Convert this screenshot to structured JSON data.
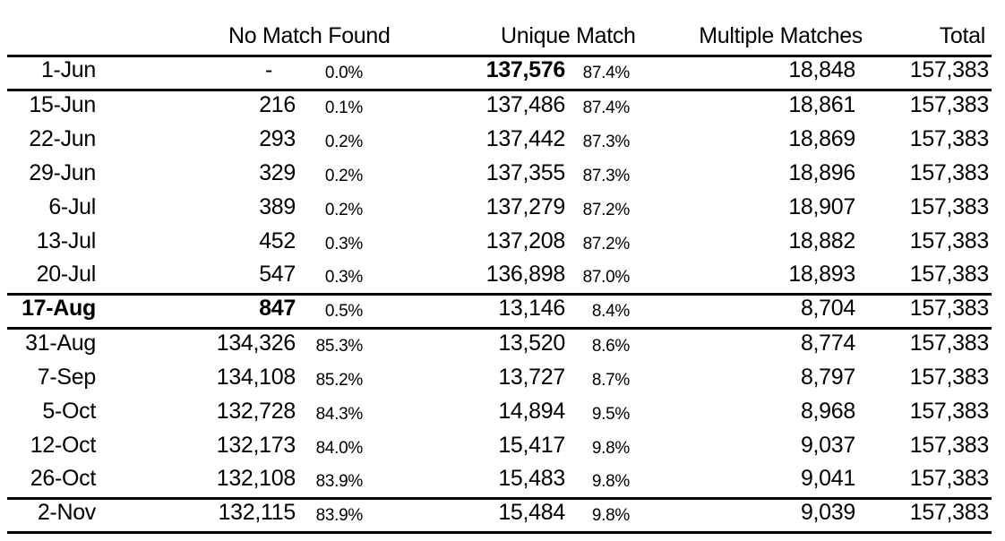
{
  "colors": {
    "text": "#000000",
    "background": "#ffffff",
    "rule": "#000000"
  },
  "chart_data": {
    "type": "table",
    "title": "",
    "column_groups": [
      {
        "label": ""
      },
      {
        "label": "No Match Found"
      },
      {
        "label": "Unique Match"
      },
      {
        "label": "Multiple Matches"
      },
      {
        "label": "Total"
      }
    ],
    "rows": [
      {
        "date": "1-Jun",
        "no_match": "-",
        "no_match_pct": "0.0%",
        "unique_match": "137,576",
        "unique_match_pct": "87.4%",
        "multiple_matches": "18,848",
        "total": "157,383",
        "bold": [
          "unique_match"
        ],
        "rule_below": true
      },
      {
        "date": "15-Jun",
        "no_match": "216",
        "no_match_pct": "0.1%",
        "unique_match": "137,486",
        "unique_match_pct": "87.4%",
        "multiple_matches": "18,861",
        "total": "157,383",
        "bold": [],
        "rule_below": false
      },
      {
        "date": "22-Jun",
        "no_match": "293",
        "no_match_pct": "0.2%",
        "unique_match": "137,442",
        "unique_match_pct": "87.3%",
        "multiple_matches": "18,869",
        "total": "157,383",
        "bold": [],
        "rule_below": false
      },
      {
        "date": "29-Jun",
        "no_match": "329",
        "no_match_pct": "0.2%",
        "unique_match": "137,355",
        "unique_match_pct": "87.3%",
        "multiple_matches": "18,896",
        "total": "157,383",
        "bold": [],
        "rule_below": false
      },
      {
        "date": "6-Jul",
        "no_match": "389",
        "no_match_pct": "0.2%",
        "unique_match": "137,279",
        "unique_match_pct": "87.2%",
        "multiple_matches": "18,907",
        "total": "157,383",
        "bold": [],
        "rule_below": false
      },
      {
        "date": "13-Jul",
        "no_match": "452",
        "no_match_pct": "0.3%",
        "unique_match": "137,208",
        "unique_match_pct": "87.2%",
        "multiple_matches": "18,882",
        "total": "157,383",
        "bold": [],
        "rule_below": false
      },
      {
        "date": "20-Jul",
        "no_match": "547",
        "no_match_pct": "0.3%",
        "unique_match": "136,898",
        "unique_match_pct": "87.0%",
        "multiple_matches": "18,893",
        "total": "157,383",
        "bold": [],
        "rule_below": true
      },
      {
        "date": "17-Aug",
        "no_match": "847",
        "no_match_pct": "0.5%",
        "unique_match": "13,146",
        "unique_match_pct": "8.4%",
        "multiple_matches": "8,704",
        "total": "157,383",
        "bold": [
          "date",
          "no_match"
        ],
        "rule_below": true
      },
      {
        "date": "31-Aug",
        "no_match": "134,326",
        "no_match_pct": "85.3%",
        "unique_match": "13,520",
        "unique_match_pct": "8.6%",
        "multiple_matches": "8,774",
        "total": "157,383",
        "bold": [],
        "rule_below": false
      },
      {
        "date": "7-Sep",
        "no_match": "134,108",
        "no_match_pct": "85.2%",
        "unique_match": "13,727",
        "unique_match_pct": "8.7%",
        "multiple_matches": "8,797",
        "total": "157,383",
        "bold": [],
        "rule_below": false
      },
      {
        "date": "5-Oct",
        "no_match": "132,728",
        "no_match_pct": "84.3%",
        "unique_match": "14,894",
        "unique_match_pct": "9.5%",
        "multiple_matches": "8,968",
        "total": "157,383",
        "bold": [],
        "rule_below": false
      },
      {
        "date": "12-Oct",
        "no_match": "132,173",
        "no_match_pct": "84.0%",
        "unique_match": "15,417",
        "unique_match_pct": "9.8%",
        "multiple_matches": "9,037",
        "total": "157,383",
        "bold": [],
        "rule_below": false
      },
      {
        "date": "26-Oct",
        "no_match": "132,108",
        "no_match_pct": "83.9%",
        "unique_match": "15,483",
        "unique_match_pct": "9.8%",
        "multiple_matches": "9,041",
        "total": "157,383",
        "bold": [],
        "rule_below": true
      },
      {
        "date": "2-Nov",
        "no_match": "132,115",
        "no_match_pct": "83.9%",
        "unique_match": "15,484",
        "unique_match_pct": "9.8%",
        "multiple_matches": "9,039",
        "total": "157,383",
        "bold": [],
        "rule_below": true
      }
    ]
  }
}
